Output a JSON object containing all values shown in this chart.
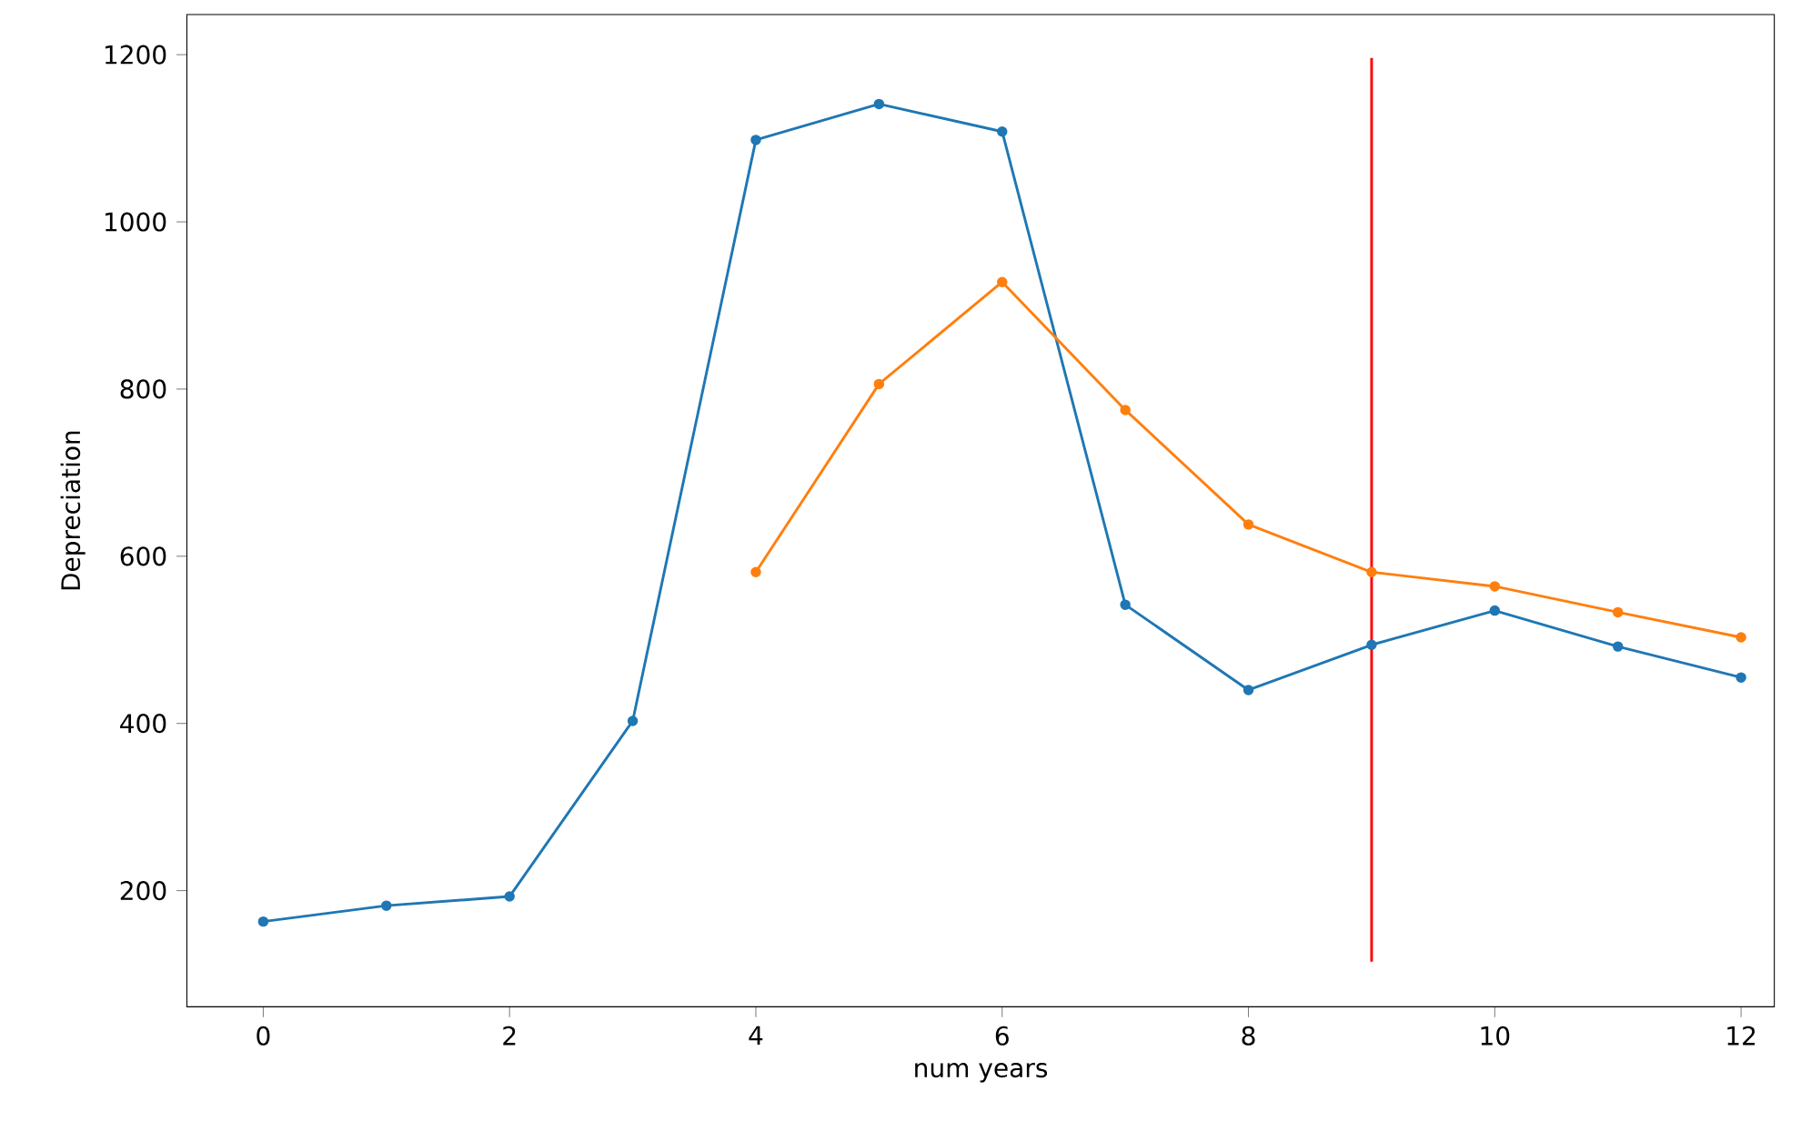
{
  "chart_data": {
    "type": "line",
    "xlabel": "num years",
    "ylabel": "Depreciation",
    "xlim": [
      -0.62,
      12.27
    ],
    "ylim": [
      61,
      1248
    ],
    "xticks": [
      0,
      2,
      4,
      6,
      8,
      10,
      12
    ],
    "yticks": [
      200,
      400,
      600,
      800,
      1000,
      1200
    ],
    "grid": false,
    "marker": "circle",
    "series": [
      {
        "color": "#1f77b4",
        "x": [
          0,
          1,
          2,
          3,
          4,
          5,
          6,
          7,
          8,
          9,
          10,
          11,
          12
        ],
        "values": [
          163,
          182,
          193,
          403,
          1098,
          1141,
          1108,
          542,
          440,
          494,
          535,
          492,
          455
        ]
      },
      {
        "color": "#ff7f0e",
        "x": [
          4,
          5,
          6,
          7,
          8,
          9,
          10,
          11,
          12
        ],
        "values": [
          581,
          806,
          928,
          775,
          638,
          581,
          564,
          533,
          503
        ]
      },
      {
        "color": "#ff0000",
        "marker": "none",
        "x": [
          9,
          9
        ],
        "values": [
          115,
          1196
        ]
      }
    ]
  }
}
